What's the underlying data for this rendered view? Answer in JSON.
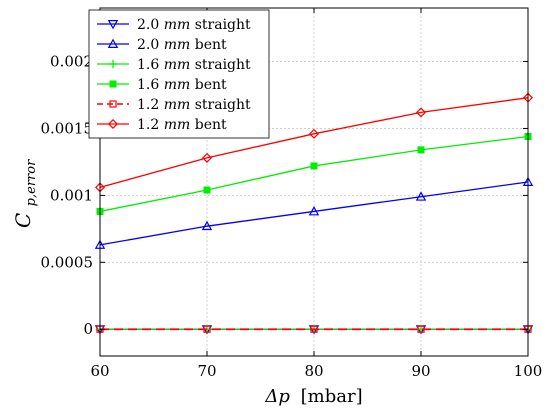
{
  "chart_data": {
    "type": "line",
    "xlabel_symbol": "Δp",
    "xlabel_unit": "[mbar]",
    "ylabel_main": "C",
    "ylabel_sub": "p,error",
    "xlim": [
      60,
      100
    ],
    "ylim": [
      -0.0002,
      0.0024
    ],
    "x": [
      60,
      70,
      80,
      90,
      100
    ],
    "xticks": [
      "60",
      "70",
      "80",
      "90",
      "100"
    ],
    "yticks": [
      {
        "value": 0,
        "label": "0"
      },
      {
        "value": 0.0005,
        "label": "0.0005"
      },
      {
        "value": 0.001,
        "label": "0.001"
      },
      {
        "value": 0.0015,
        "label": "0.0015"
      },
      {
        "value": 0.002,
        "label": "0.002"
      }
    ],
    "grid": true,
    "legend_position": "top-left",
    "series": [
      {
        "size": "2.0",
        "unit": "mm",
        "kind": "straight",
        "color": "#0000ff",
        "marker": "triangle-down",
        "dash": "solid",
        "values": [
          0,
          0,
          0,
          0,
          0
        ]
      },
      {
        "size": "2.0",
        "unit": "mm",
        "kind": "bent",
        "color": "#0000ff",
        "marker": "triangle-up",
        "dash": "solid",
        "values": [
          0.00063,
          0.00077,
          0.00088,
          0.00099,
          0.0011
        ]
      },
      {
        "size": "1.6",
        "unit": "mm",
        "kind": "straight",
        "color": "#00ee00",
        "marker": "plus",
        "dash": "solid",
        "values": [
          0,
          0,
          0,
          0,
          0
        ]
      },
      {
        "size": "1.6",
        "unit": "mm",
        "kind": "bent",
        "color": "#00ee00",
        "marker": "square-filled",
        "dash": "solid",
        "values": [
          0.00088,
          0.00104,
          0.00122,
          0.00134,
          0.00144
        ]
      },
      {
        "size": "1.2",
        "unit": "mm",
        "kind": "straight",
        "color": "#ff0000",
        "marker": "square",
        "dash": "dashed",
        "values": [
          0,
          0,
          0,
          0,
          0
        ]
      },
      {
        "size": "1.2",
        "unit": "mm",
        "kind": "bent",
        "color": "#ff0000",
        "marker": "diamond",
        "dash": "solid",
        "values": [
          0.00106,
          0.00128,
          0.00146,
          0.00162,
          0.00173
        ]
      }
    ]
  }
}
